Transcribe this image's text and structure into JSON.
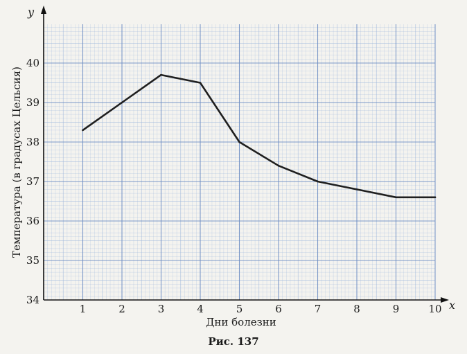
{
  "chart_data": {
    "type": "line",
    "x_axis_letter": "x",
    "y_axis_letter": "y",
    "xlabel": "Дни болезни",
    "ylabel": "Температура (в градусах Цельсия)",
    "xlim": [
      0,
      10
    ],
    "ylim": [
      34,
      41
    ],
    "x_ticks": [
      "1",
      "2",
      "3",
      "4",
      "5",
      "6",
      "7",
      "8",
      "9",
      "10"
    ],
    "y_ticks": [
      "34",
      "35",
      "36",
      "37",
      "38",
      "39",
      "40"
    ],
    "grid": true,
    "series": [
      {
        "x": [
          1,
          2,
          3,
          4,
          5,
          6,
          7,
          8,
          9,
          10
        ],
        "y": [
          38.3,
          39.0,
          39.7,
          39.5,
          38.0,
          37.4,
          37.0,
          36.8,
          36.6,
          36.6
        ]
      }
    ]
  },
  "caption": "Рис. 137",
  "colors": {
    "grid": "#9fb8dc",
    "grid_major": "#6f8fc4",
    "line": "#1f1f1f",
    "axis": "#111111"
  }
}
